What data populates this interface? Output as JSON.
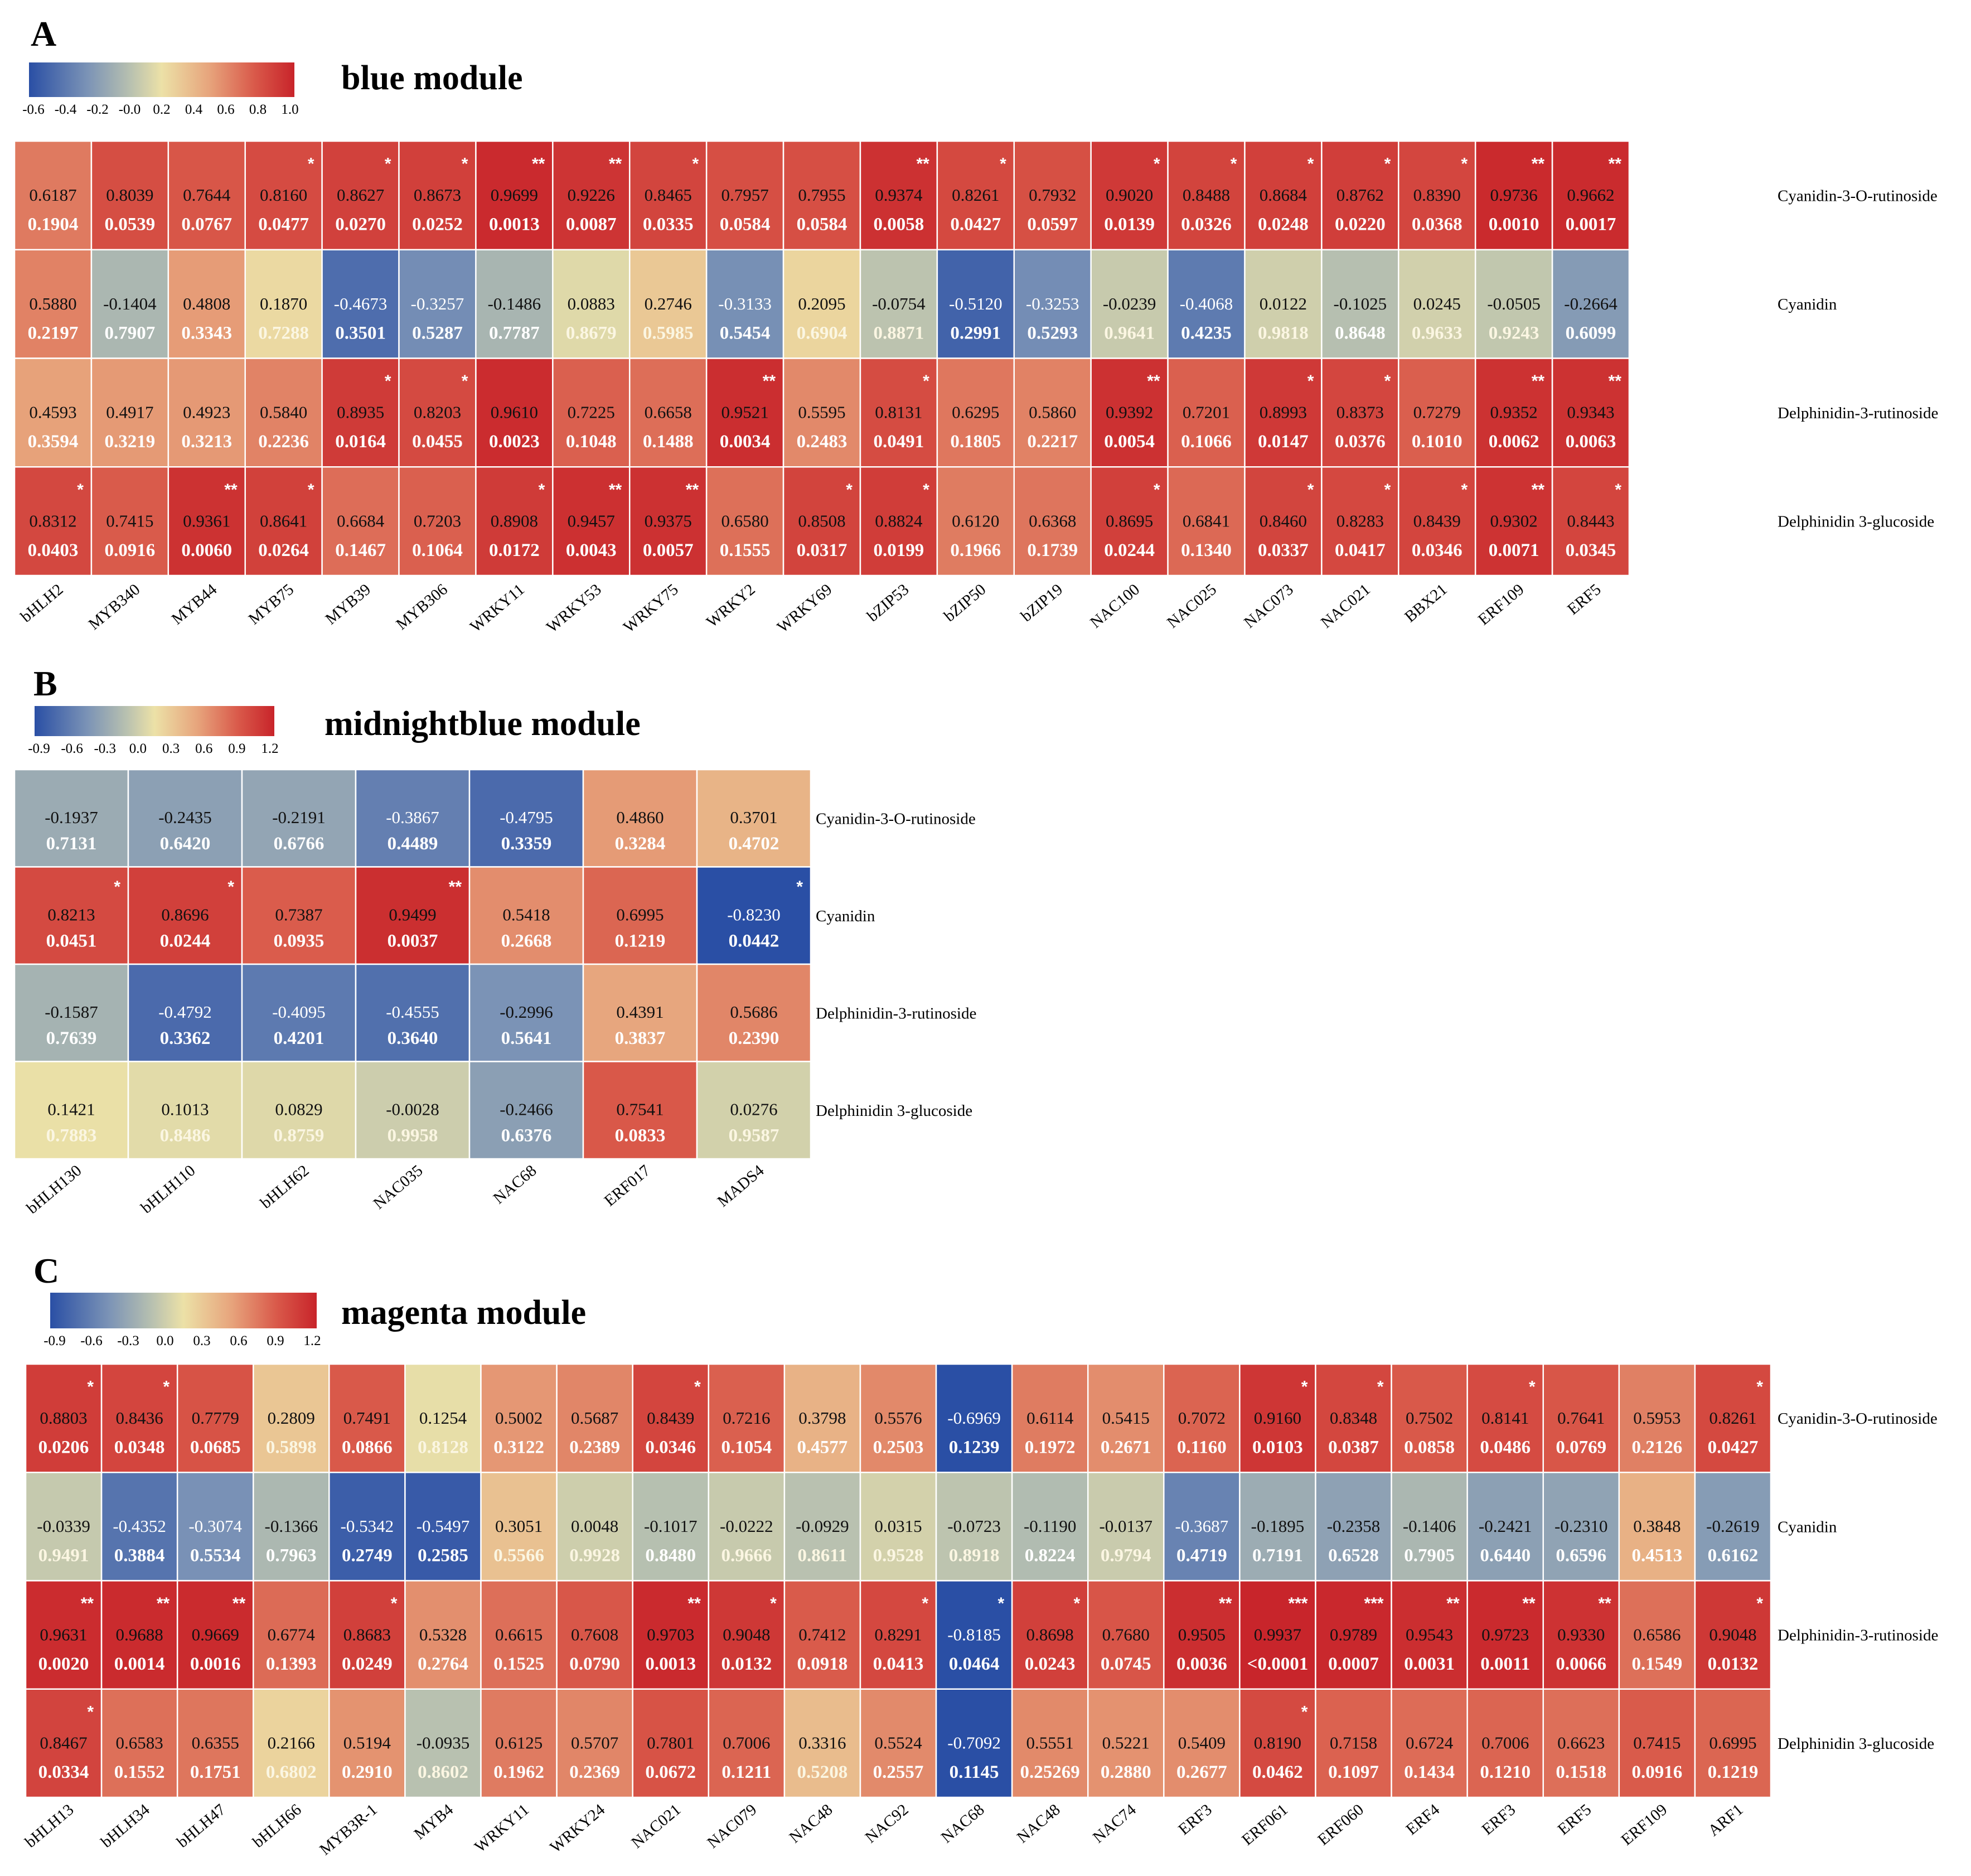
{
  "chart_data": [
    {
      "type": "heatmap",
      "panel": "A",
      "title": "blue module",
      "colorbar_ticks": [
        "-0.6",
        "-0.4",
        "-0.2",
        "-0.0",
        "0.2",
        "0.4",
        "0.6",
        "0.8",
        "1.0"
      ],
      "vmin": -0.6,
      "vmax": 1.0,
      "columns": [
        "bHLH2",
        "MYB340",
        "MYB44",
        "MYB75",
        "MYB39",
        "MYB306",
        "WRKY11",
        "WRKY53",
        "WRKY75",
        "WRKY2",
        "WRKY69",
        "bZIP53",
        "bZIP50",
        "bZIP19",
        "NAC100",
        "NAC025",
        "NAC073",
        "NAC021",
        "BBX21",
        "ERF109",
        "ERF5"
      ],
      "rows": [
        "Cyanidin-3-O-rutinoside",
        "Cyanidin",
        "Delphinidin-3-rutinoside",
        "Delphinidin 3-glucoside"
      ],
      "r": [
        [
          "0.6187",
          "0.8039",
          "0.7644",
          "0.8160",
          "0.8627",
          "0.8673",
          "0.9699",
          "0.9226",
          "0.8465",
          "0.7957",
          "0.7955",
          "0.9374",
          "0.8261",
          "0.7932",
          "0.9020",
          "0.8488",
          "0.8684",
          "0.8762",
          "0.8390",
          "0.9736",
          "0.9662"
        ],
        [
          "0.5880",
          "-0.1404",
          "0.4808",
          "0.1870",
          "-0.4673",
          "-0.3257",
          "-0.1486",
          "0.0883",
          "0.2746",
          "-0.3133",
          "0.2095",
          "-0.0754",
          "-0.5120",
          "-0.3253",
          "-0.0239",
          "-0.4068",
          "0.0122",
          "-0.1025",
          "0.0245",
          "-0.0505",
          "-0.2664"
        ],
        [
          "0.4593",
          "0.4917",
          "0.4923",
          "0.5840",
          "0.8935",
          "0.8203",
          "0.9610",
          "0.7225",
          "0.6658",
          "0.9521",
          "0.5595",
          "0.8131",
          "0.6295",
          "0.5860",
          "0.9392",
          "0.7201",
          "0.8993",
          "0.8373",
          "0.7279",
          "0.9352",
          "0.9343"
        ],
        [
          "0.8312",
          "0.7415",
          "0.9361",
          "0.8641",
          "0.6684",
          "0.7203",
          "0.8908",
          "0.9457",
          "0.9375",
          "0.6580",
          "0.8508",
          "0.8824",
          "0.6120",
          "0.6368",
          "0.8695",
          "0.6841",
          "0.8460",
          "0.8283",
          "0.8439",
          "0.9302",
          "0.8443"
        ]
      ],
      "p": [
        [
          "0.1904",
          "0.0539",
          "0.0767",
          "0.0477",
          "0.0270",
          "0.0252",
          "0.0013",
          "0.0087",
          "0.0335",
          "0.0584",
          "0.0584",
          "0.0058",
          "0.0427",
          "0.0597",
          "0.0139",
          "0.0326",
          "0.0248",
          "0.0220",
          "0.0368",
          "0.0010",
          "0.0017"
        ],
        [
          "0.2197",
          "0.7907",
          "0.3343",
          "0.7288",
          "0.3501",
          "0.5287",
          "0.7787",
          "0.8679",
          "0.5985",
          "0.5454",
          "0.6904",
          "0.8871",
          "0.2991",
          "0.5293",
          "0.9641",
          "0.4235",
          "0.9818",
          "0.8648",
          "0.9633",
          "0.9243",
          "0.6099"
        ],
        [
          "0.3594",
          "0.3219",
          "0.3213",
          "0.2236",
          "0.0164",
          "0.0455",
          "0.0023",
          "0.1048",
          "0.1488",
          "0.0034",
          "0.2483",
          "0.0491",
          "0.1805",
          "0.2217",
          "0.0054",
          "0.1066",
          "0.0147",
          "0.0376",
          "0.1010",
          "0.0062",
          "0.0063"
        ],
        [
          "0.0403",
          "0.0916",
          "0.0060",
          "0.0264",
          "0.1467",
          "0.1064",
          "0.0172",
          "0.0043",
          "0.0057",
          "0.1555",
          "0.0317",
          "0.0199",
          "0.1966",
          "0.1739",
          "0.0244",
          "0.1340",
          "0.0337",
          "0.0417",
          "0.0346",
          "0.0071",
          "0.0345"
        ]
      ],
      "stars": [
        [
          "",
          "",
          "",
          "*",
          "*",
          "*",
          "**",
          "**",
          "*",
          "",
          "",
          "**",
          "*",
          "",
          "*",
          "*",
          "*",
          "*",
          "*",
          "**",
          "**"
        ],
        [
          "",
          "",
          "",
          "",
          "",
          "",
          "",
          "",
          "",
          "",
          "",
          "",
          "",
          "",
          "",
          "",
          "",
          "",
          "",
          "",
          ""
        ],
        [
          "",
          "",
          "",
          "",
          "*",
          "*",
          "",
          "",
          "",
          "**",
          "",
          "*",
          "",
          "",
          "**",
          "",
          "*",
          "*",
          "",
          "**",
          "**"
        ],
        [
          "*",
          "",
          "**",
          "*",
          "",
          "",
          "*",
          "**",
          "**",
          "",
          "*",
          "*",
          "",
          "",
          "*",
          "",
          "*",
          "*",
          "*",
          "**",
          "*"
        ]
      ]
    },
    {
      "type": "heatmap",
      "panel": "B",
      "title": "midnightblue module",
      "colorbar_ticks": [
        "-0.9",
        "-0.6",
        "-0.3",
        "0.0",
        "0.3",
        "0.6",
        "0.9",
        "1.2"
      ],
      "vmin": -0.9,
      "vmax": 1.2,
      "columns": [
        "bHLH130",
        "bHLH110",
        "bHLH62",
        "NAC035",
        "NAC68",
        "ERF017",
        "MADS4"
      ],
      "rows": [
        "Cyanidin-3-O-rutinoside",
        "Cyanidin",
        "Delphinidin-3-rutinoside",
        "Delphinidin 3-glucoside"
      ],
      "r": [
        [
          "-0.1937",
          "-0.2435",
          "-0.2191",
          "-0.3867",
          "-0.4795",
          "0.4860",
          "0.3701"
        ],
        [
          "0.8213",
          "0.8696",
          "0.7387",
          "0.9499",
          "0.5418",
          "0.6995",
          "-0.8230"
        ],
        [
          "-0.1587",
          "-0.4792",
          "-0.4095",
          "-0.4555",
          "-0.2996",
          "0.4391",
          "0.5686"
        ],
        [
          "0.1421",
          "0.1013",
          "0.0829",
          "-0.0028",
          "-0.2466",
          "0.7541",
          "0.0276"
        ]
      ],
      "p": [
        [
          "0.7131",
          "0.6420",
          "0.6766",
          "0.4489",
          "0.3359",
          "0.3284",
          "0.4702"
        ],
        [
          "0.0451",
          "0.0244",
          "0.0935",
          "0.0037",
          "0.2668",
          "0.1219",
          "0.0442"
        ],
        [
          "0.7639",
          "0.3362",
          "0.4201",
          "0.3640",
          "0.5641",
          "0.3837",
          "0.2390"
        ],
        [
          "0.7883",
          "0.8486",
          "0.8759",
          "0.9958",
          "0.6376",
          "0.0833",
          "0.9587"
        ]
      ],
      "stars": [
        [
          "",
          "",
          "",
          "",
          "",
          "",
          ""
        ],
        [
          "*",
          "*",
          "",
          "**",
          "",
          "",
          "*"
        ],
        [
          "",
          "",
          "",
          "",
          "",
          "",
          ""
        ],
        [
          "",
          "",
          "",
          "",
          "",
          "",
          ""
        ]
      ]
    },
    {
      "type": "heatmap",
      "panel": "C",
      "title": "magenta module",
      "colorbar_ticks": [
        "-0.9",
        "-0.6",
        "-0.3",
        "0.0",
        "0.3",
        "0.6",
        "0.9",
        "1.2"
      ],
      "vmin": -0.9,
      "vmax": 1.2,
      "columns": [
        "bHLH13",
        "bHLH34",
        "bHLH47",
        "bHLH66",
        "MYB3R-1",
        "MYB4",
        "WRKY11",
        "WRKY24",
        "NAC021",
        "NAC079",
        "NAC48",
        "NAC92",
        "NAC68",
        "NAC48",
        "NAC74",
        "ERF3",
        "ERF061",
        "ERF060",
        "ERF4",
        "ERF3",
        "ERF5",
        "ERF109",
        "ARF1"
      ],
      "rows": [
        "Cyanidin-3-O-rutinoside",
        "Cyanidin",
        "Delphinidin-3-rutinoside",
        "Delphinidin 3-glucoside"
      ],
      "r": [
        [
          "0.8803",
          "0.8436",
          "0.7779",
          "0.2809",
          "0.7491",
          "0.1254",
          "0.5002",
          "0.5687",
          "0.8439",
          "0.7216",
          "0.3798",
          "0.5576",
          "-0.6969",
          "0.6114",
          "0.5415",
          "0.7072",
          "0.9160",
          "0.8348",
          "0.7502",
          "0.8141",
          "0.7641",
          "0.5953",
          "0.8261"
        ],
        [
          "-0.0339",
          "-0.4352",
          "-0.3074",
          "-0.1366",
          "-0.5342",
          "-0.5497",
          "0.3051",
          "0.0048",
          "-0.1017",
          "-0.0222",
          "-0.0929",
          "0.0315",
          "-0.0723",
          "-0.1190",
          "-0.0137",
          "-0.3687",
          "-0.1895",
          "-0.2358",
          "-0.1406",
          "-0.2421",
          "-0.2310",
          "0.3848",
          "-0.2619"
        ],
        [
          "0.9631",
          "0.9688",
          "0.9669",
          "0.6774",
          "0.8683",
          "0.5328",
          "0.6615",
          "0.7608",
          "0.9703",
          "0.9048",
          "0.7412",
          "0.8291",
          "-0.8185",
          "0.8698",
          "0.7680",
          "0.9505",
          "0.9937",
          "0.9789",
          "0.9543",
          "0.9723",
          "0.9330",
          "0.6586",
          "0.9048"
        ],
        [
          "0.8467",
          "0.6583",
          "0.6355",
          "0.2166",
          "0.5194",
          "-0.0935",
          "0.6125",
          "0.5707",
          "0.7801",
          "0.7006",
          "0.3316",
          "0.5524",
          "-0.7092",
          "0.5551",
          "0.5221",
          "0.5409",
          "0.8190",
          "0.7158",
          "0.6724",
          "0.7006",
          "0.6623",
          "0.7415",
          "0.6995"
        ]
      ],
      "p": [
        [
          "0.0206",
          "0.0348",
          "0.0685",
          "0.5898",
          "0.0866",
          "0.8128",
          "0.3122",
          "0.2389",
          "0.0346",
          "0.1054",
          "0.4577",
          "0.2503",
          "0.1239",
          "0.1972",
          "0.2671",
          "0.1160",
          "0.0103",
          "0.0387",
          "0.0858",
          "0.0486",
          "0.0769",
          "0.2126",
          "0.0427"
        ],
        [
          "0.9491",
          "0.3884",
          "0.5534",
          "0.7963",
          "0.2749",
          "0.2585",
          "0.5566",
          "0.9928",
          "0.8480",
          "0.9666",
          "0.8611",
          "0.9528",
          "0.8918",
          "0.8224",
          "0.9794",
          "0.4719",
          "0.7191",
          "0.6528",
          "0.7905",
          "0.6440",
          "0.6596",
          "0.4513",
          "0.6162"
        ],
        [
          "0.0020",
          "0.0014",
          "0.0016",
          "0.1393",
          "0.0249",
          "0.2764",
          "0.1525",
          "0.0790",
          "0.0013",
          "0.0132",
          "0.0918",
          "0.0413",
          "0.0464",
          "0.0243",
          "0.0745",
          "0.0036",
          "<0.0001",
          "0.0007",
          "0.0031",
          "0.0011",
          "0.0066",
          "0.1549",
          "0.0132"
        ],
        [
          "0.0334",
          "0.1552",
          "0.1751",
          "0.6802",
          "0.2910",
          "0.8602",
          "0.1962",
          "0.2369",
          "0.0672",
          "0.1211",
          "0.5208",
          "0.2557",
          "0.1145",
          "0.25269",
          "0.2880",
          "0.2677",
          "0.0462",
          "0.1097",
          "0.1434",
          "0.1210",
          "0.1518",
          "0.0916",
          "0.1219"
        ]
      ],
      "stars": [
        [
          "*",
          "*",
          "",
          "",
          "",
          "",
          "",
          "",
          "*",
          "",
          "",
          "",
          "",
          "",
          "",
          "",
          "*",
          "*",
          "",
          "*",
          "",
          "",
          "*"
        ],
        [
          "",
          "",
          "",
          "",
          "",
          "",
          "",
          "",
          "",
          "",
          "",
          "",
          "",
          "",
          "",
          "",
          "",
          "",
          "",
          "",
          "",
          "",
          ""
        ],
        [
          "**",
          "**",
          "**",
          "",
          "*",
          "",
          "",
          "",
          "**",
          "*",
          "",
          "*",
          "*",
          "*",
          "",
          "**",
          "***",
          "***",
          "**",
          "**",
          "**",
          "",
          "*"
        ],
        [
          "*",
          "",
          "",
          "",
          "",
          "",
          "",
          "",
          "",
          "",
          "",
          "",
          "",
          "",
          "",
          "",
          "*",
          "",
          "",
          "",
          "",
          "",
          ""
        ]
      ]
    }
  ]
}
